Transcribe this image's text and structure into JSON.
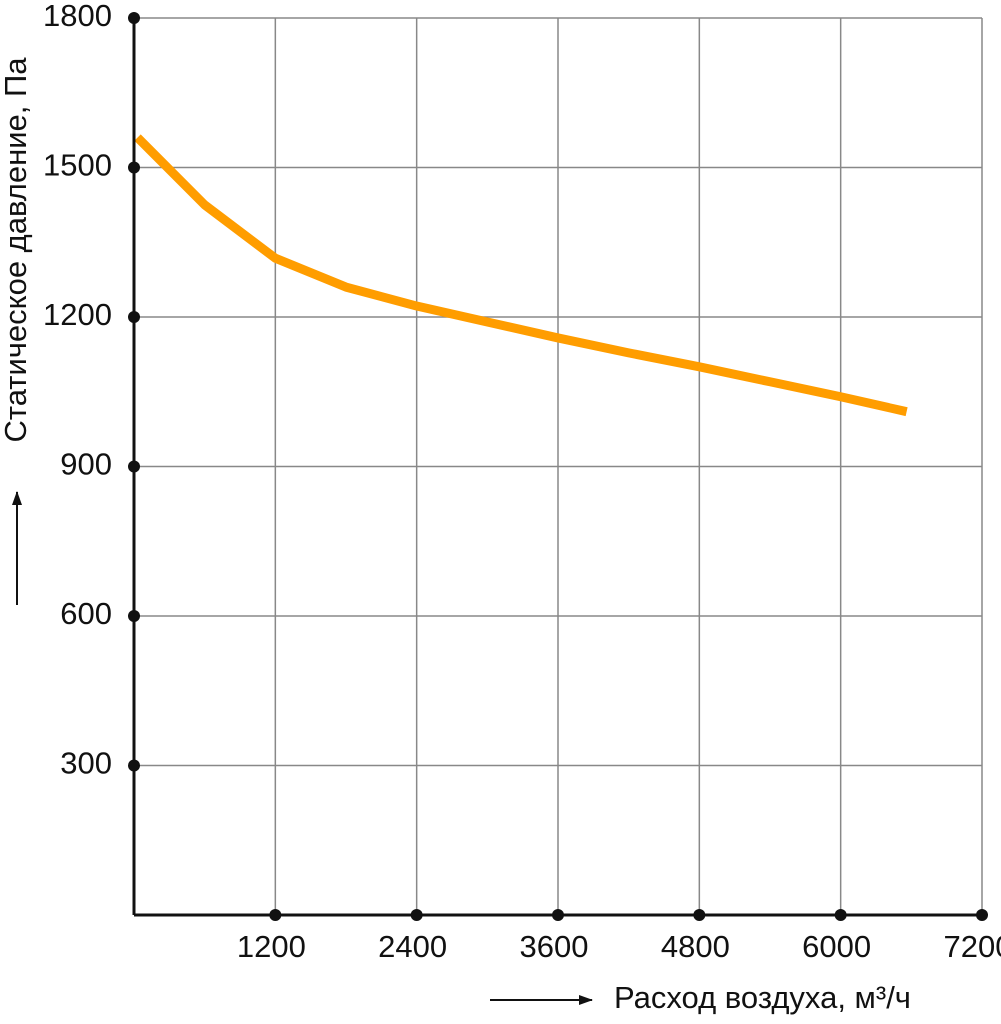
{
  "chart_data": {
    "type": "line",
    "x_label": "Расход воздуха, м³/ч",
    "y_label": "Статическое давление, Па",
    "xlim": [
      0,
      7200
    ],
    "ylim": [
      0,
      1800
    ],
    "xticks": [
      1200,
      2400,
      3600,
      4800,
      6000,
      7200
    ],
    "yticks": [
      300,
      600,
      900,
      1200,
      1500,
      1800
    ],
    "grid": true,
    "series": [
      {
        "color": "#ff9d00",
        "x": [
          30,
          600,
          1200,
          1800,
          2400,
          3000,
          3600,
          4200,
          4800,
          5400,
          6000,
          6560
        ],
        "values": [
          1560,
          1425,
          1318,
          1260,
          1222,
          1190,
          1158,
          1128,
          1100,
          1070,
          1040,
          1010
        ]
      }
    ]
  }
}
